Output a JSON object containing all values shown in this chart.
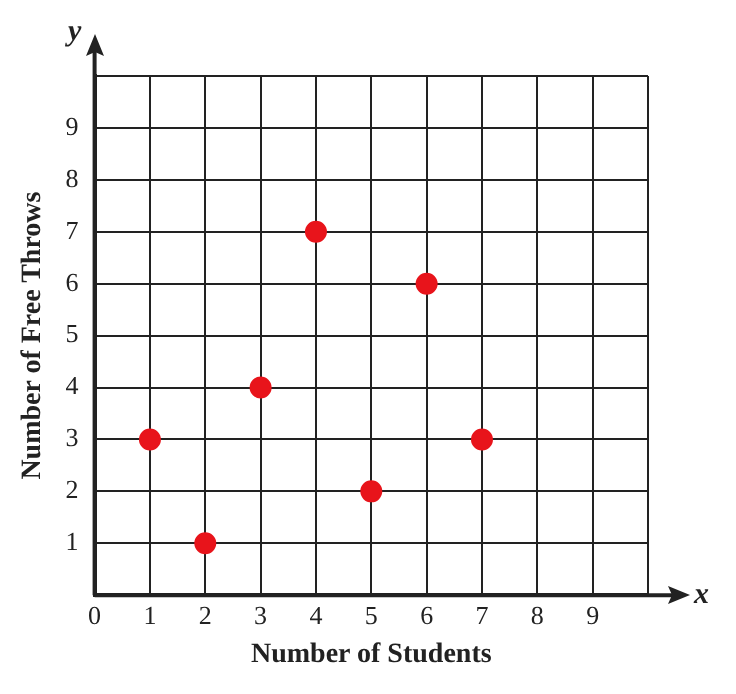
{
  "chart_data": {
    "type": "scatter",
    "xlabel": "Number of Students",
    "ylabel": "Number of Free Throws",
    "annotations": [
      "x",
      "y"
    ],
    "x": [
      1,
      2,
      3,
      4,
      5,
      6,
      7
    ],
    "values": [
      3,
      1,
      4,
      7,
      2,
      6,
      3
    ],
    "color": "#e8141b",
    "marker": "circle",
    "grid": true,
    "xlim": [
      0,
      10
    ],
    "ylim": [
      0,
      10
    ],
    "xticks": [
      {
        "value": 0,
        "label": "0"
      },
      1,
      2,
      3,
      4,
      5,
      6,
      7,
      8,
      9,
      {
        "value": 10,
        "label": null
      }
    ],
    "yticks": [
      {
        "value": 0,
        "label": null
      },
      1,
      2,
      3,
      4,
      5,
      6,
      7,
      8,
      9,
      {
        "value": 10,
        "label": null
      }
    ]
  }
}
